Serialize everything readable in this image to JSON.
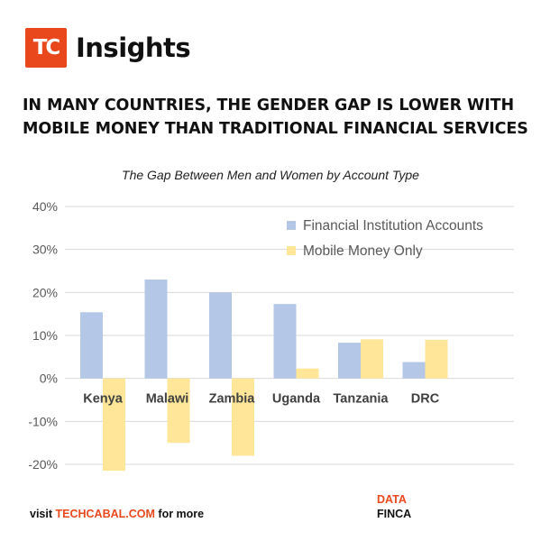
{
  "brand": {
    "mark": "TC",
    "name": "Insights",
    "colors": {
      "accent": "#e8481c"
    }
  },
  "headline": {
    "line1": "IN MANY COUNTRIES, THE GENDER GAP IS LOWER WITH",
    "line2": "MOBILE MONEY THAN TRADITIONAL FINANCIAL SERVICES"
  },
  "chart_data": {
    "type": "bar",
    "title": "The Gap Between Men and Women by Account Type",
    "categories": [
      "Kenya",
      "Malawi",
      "Zambia",
      "Uganda",
      "Tanzania",
      "DRC"
    ],
    "series": [
      {
        "name": "Financial Institution Accounts",
        "color": "#b4c7e7",
        "values": [
          15.4,
          23,
          20,
          17.3,
          8.3,
          3.8
        ]
      },
      {
        "name": "Mobile Money Only",
        "color": "#ffe699",
        "values": [
          -21.5,
          -15,
          -18,
          2.3,
          9.1,
          9
        ]
      }
    ],
    "ylim": [
      -20,
      40
    ],
    "yticks": [
      40,
      30,
      20,
      10,
      0,
      -10,
      -20
    ],
    "ytick_labels": [
      "40%",
      "30%",
      "20%",
      "10%",
      "0%",
      "-10%",
      "-20%"
    ],
    "grid": true,
    "legend": "top-right",
    "xlabel": "",
    "ylabel": ""
  },
  "footer": {
    "visit": "visit",
    "link": "TECHCABAL.COM",
    "more": "for more",
    "data_label": "DATA",
    "source": "FINCA"
  }
}
